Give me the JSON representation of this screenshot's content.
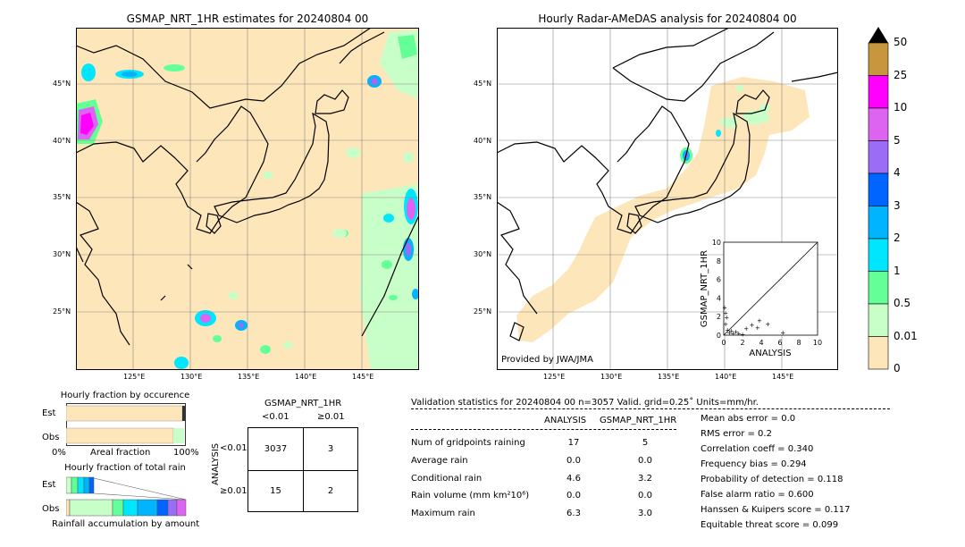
{
  "left_map": {
    "title": "GSMAP_NRT_1HR estimates for 20240804 00",
    "lat_labels": [
      "45°N",
      "40°N",
      "35°N",
      "30°N",
      "25°N"
    ],
    "lon_labels": [
      "125°E",
      "130°E",
      "135°E",
      "140°E",
      "145°E"
    ]
  },
  "right_map": {
    "title": "Hourly Radar-AMeDAS analysis for 20240804 00",
    "lat_labels": [
      "45°N",
      "40°N",
      "35°N",
      "30°N",
      "25°N"
    ],
    "lon_labels": [
      "125°E",
      "130°E",
      "135°E",
      "140°E",
      "145°E"
    ],
    "credit": "Provided by JWA/JMA"
  },
  "colorbar": {
    "labels": [
      "50",
      "25",
      "10",
      "5",
      "4",
      "3",
      "2",
      "1",
      "0.5",
      "0.01",
      "0"
    ],
    "colors": [
      "#c8963c",
      "#ff00ff",
      "#dc64f0",
      "#9b6cf6",
      "#0064ff",
      "#00b4ff",
      "#00e6ff",
      "#64ff96",
      "#c8ffc8",
      "#fde6b9"
    ]
  },
  "hist_occurrence": {
    "title": "Hourly fraction by occurence",
    "row_labels": [
      "Est",
      "Obs"
    ],
    "xlabel_left": "0%",
    "xlabel_mid": "Areal fraction",
    "xlabel_right": "100%"
  },
  "hist_total": {
    "title": "Hourly fraction of total rain",
    "row_labels": [
      "Est",
      "Obs"
    ],
    "xlabel": "Rainfall accumulation by amount"
  },
  "contingency": {
    "title": "GSMAP_NRT_1HR",
    "col_labels": [
      "<0.01",
      "≥0.01"
    ],
    "row_axis_label": "ANALYSIS",
    "row_labels": [
      "<0.01",
      "≥0.01"
    ],
    "cells": [
      [
        "3037",
        "3"
      ],
      [
        "15",
        "2"
      ]
    ]
  },
  "validation": {
    "header": "Validation statistics for 20240804 00  n=3057 Valid. grid=0.25˚ Units=mm/hr.",
    "col_analysis": "ANALYSIS",
    "col_gsmap": "GSMAP_NRT_1HR",
    "rows": [
      {
        "label": "Num of gridpoints raining",
        "analysis": "17",
        "gsmap": "5"
      },
      {
        "label": "Average rain",
        "analysis": "0.0",
        "gsmap": "0.0"
      },
      {
        "label": "Conditional rain",
        "analysis": "4.6",
        "gsmap": "3.2"
      },
      {
        "label": "Rain volume (mm km²10⁶)",
        "analysis": "0.0",
        "gsmap": "0.0"
      },
      {
        "label": "Maximum rain",
        "analysis": "6.3",
        "gsmap": "3.0"
      }
    ],
    "scores": [
      "Mean abs error =    0.0",
      "RMS error =    0.2",
      "Correlation coeff =  0.340",
      "Frequency bias =  0.294",
      "Probability of detection =  0.118",
      "False alarm ratio =  0.600",
      "Hanssen & Kuipers score =  0.117",
      "Equitable threat score =  0.099"
    ]
  },
  "chart_data": {
    "type": "scatter",
    "xlabel": "ANALYSIS",
    "ylabel": "GSMAP_NRT_1HR",
    "xlim": [
      0,
      10
    ],
    "ylim": [
      0,
      10
    ],
    "x_ticks": [
      "0",
      "2",
      "4",
      "6",
      "8",
      "10"
    ],
    "y_ticks": [
      "0",
      "2",
      "4",
      "6",
      "8",
      "10"
    ],
    "points": [
      [
        0.1,
        3.0
      ],
      [
        0.2,
        2.4
      ],
      [
        0.3,
        1.9
      ],
      [
        0.2,
        1.2
      ],
      [
        0.4,
        0.6
      ],
      [
        0.6,
        0.3
      ],
      [
        1.0,
        0.2
      ],
      [
        1.6,
        0.2
      ],
      [
        2.4,
        0.7
      ],
      [
        3.0,
        1.1
      ],
      [
        3.6,
        0.8
      ],
      [
        3.8,
        1.6
      ],
      [
        4.7,
        1.2
      ],
      [
        6.3,
        0.3
      ],
      [
        2.0,
        0.1
      ],
      [
        0.8,
        0.5
      ],
      [
        1.3,
        0.4
      ]
    ]
  }
}
